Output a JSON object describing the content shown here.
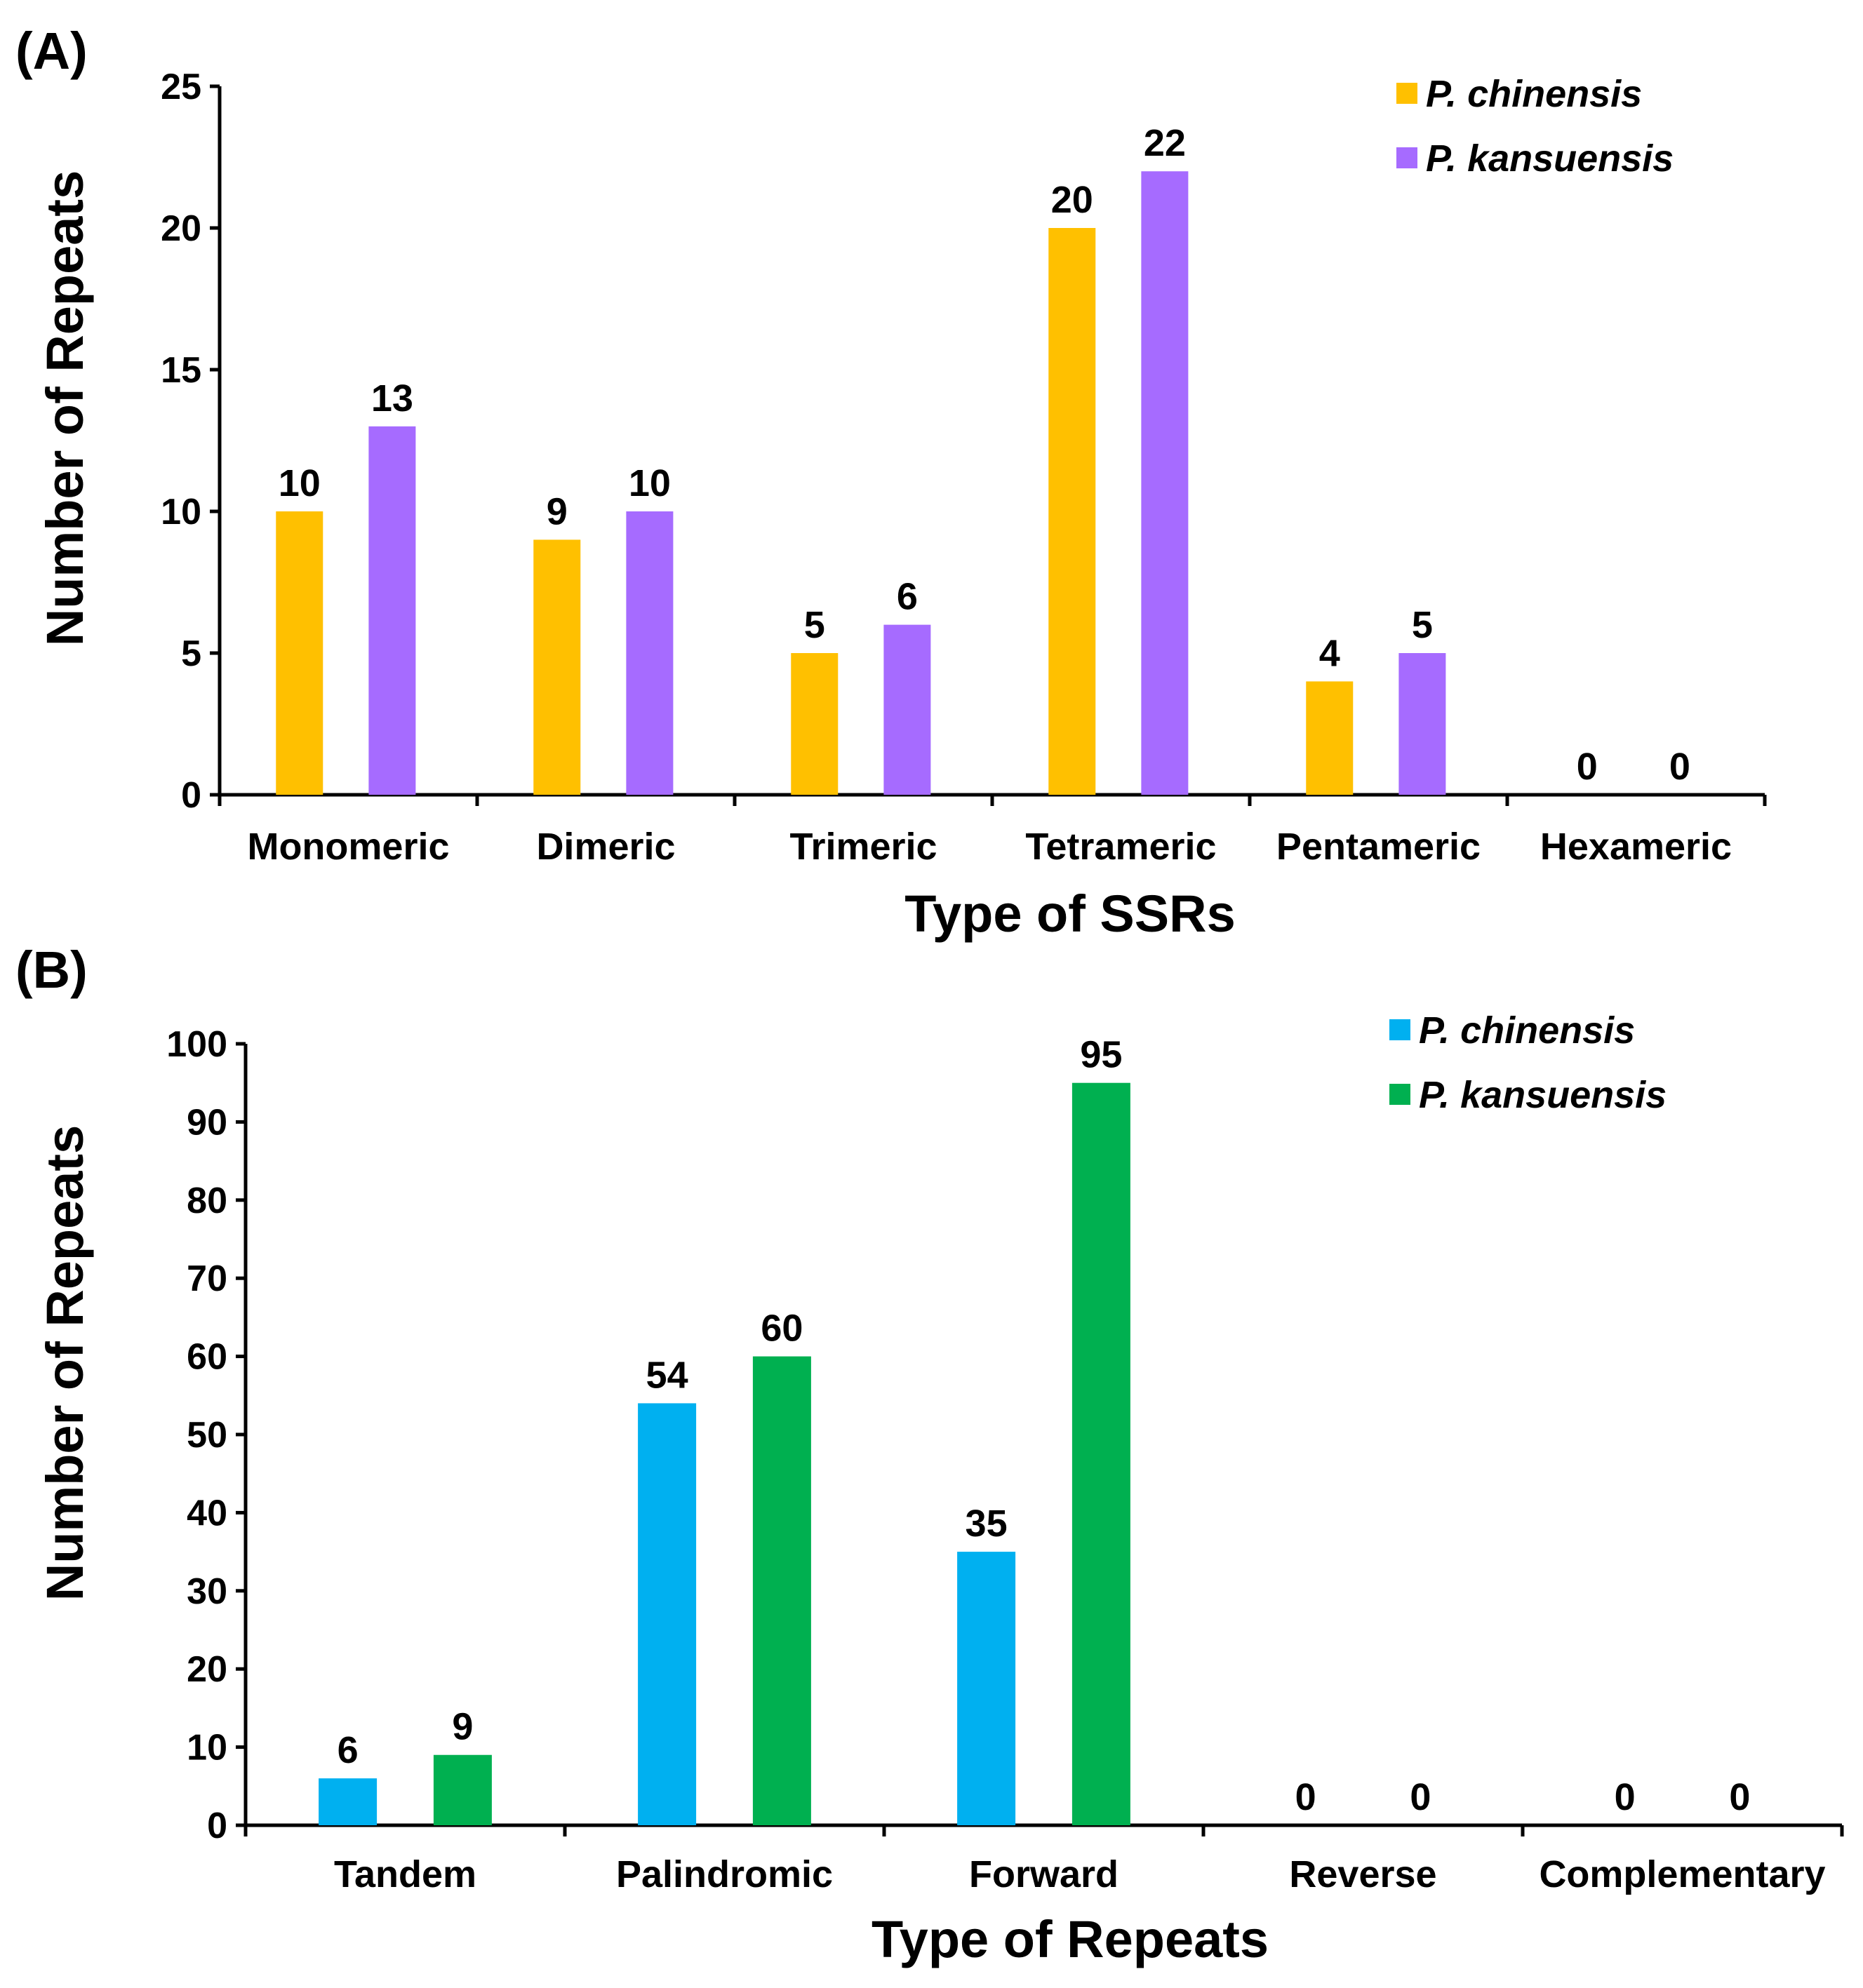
{
  "panels": [
    {
      "label": "(A)"
    },
    {
      "label": "(B)"
    }
  ],
  "chart_data": [
    {
      "type": "bar",
      "title": "",
      "xlabel": "Type of SSRs",
      "ylabel": "Number of Repeats",
      "ylim": [
        0,
        25
      ],
      "yticks": [
        0,
        5,
        10,
        15,
        20,
        25
      ],
      "categories": [
        "Monomeric",
        "Dimeric",
        "Trimeric",
        "Tetrameric",
        "Pentameric",
        "Hexameric"
      ],
      "series": [
        {
          "name": "P. chinensis",
          "color": "#FFC000",
          "values": [
            10,
            9,
            5,
            20,
            4,
            0
          ]
        },
        {
          "name": "P. kansuensis",
          "color": "#A66BFF",
          "values": [
            13,
            10,
            6,
            22,
            5,
            0
          ]
        }
      ],
      "legend": "top-right",
      "grid": false
    },
    {
      "type": "bar",
      "title": "",
      "xlabel": "Type of Repeats",
      "ylabel": "Number of Repeats",
      "ylim": [
        0,
        100
      ],
      "yticks": [
        0,
        10,
        20,
        30,
        40,
        50,
        60,
        70,
        80,
        90,
        100
      ],
      "categories": [
        "Tandem",
        "Palindromic",
        "Forward",
        "Reverse",
        "Complementary"
      ],
      "series": [
        {
          "name": "P. chinensis",
          "color": "#00B0F0",
          "values": [
            6,
            54,
            35,
            0,
            0
          ]
        },
        {
          "name": "P. kansuensis",
          "color": "#00B050",
          "values": [
            9,
            60,
            95,
            0,
            0
          ]
        }
      ],
      "legend": "top-right",
      "grid": false
    }
  ]
}
